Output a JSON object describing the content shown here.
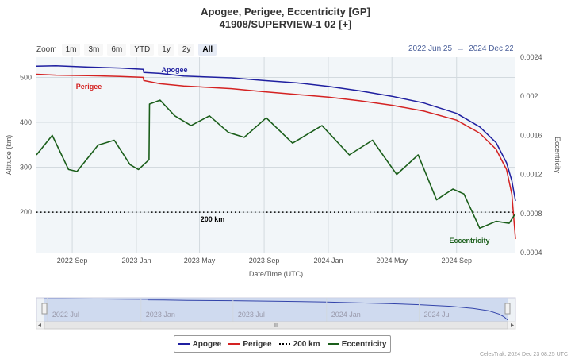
{
  "title_line1": "Apogee, Perigee, Eccentricity [GP]",
  "title_line2": "41908/SUPERVIEW-1 02 [+]",
  "zoom": {
    "label": "Zoom",
    "buttons": [
      "1m",
      "3m",
      "6m",
      "YTD",
      "1y",
      "2y",
      "All"
    ],
    "active": "All"
  },
  "range": {
    "from": "2022 Jun 25",
    "sep": "→",
    "to": "2024 Dec 22"
  },
  "legend": [
    "Apogee",
    "Perigee",
    "200 km",
    "Eccentricity"
  ],
  "credit": "CelesTrak: 2024 Dec 23 08:25 UTC",
  "navigator": {
    "labels": [
      "2022 Jul",
      "2023 Jan",
      "2023 Jul",
      "2024 Jan",
      "2024 Jul"
    ],
    "handle": "III"
  },
  "colors": {
    "apogee": "#1f1fa0",
    "perigee": "#d42222",
    "eccentricity": "#1a5e1a",
    "line200": "#000000"
  },
  "chart_data": {
    "type": "line",
    "xlabel": "Date/Time (UTC)",
    "ylabel": "Altitude (km)",
    "ylabel_right": "Eccentricity",
    "x_ticks": [
      "2022 Sep",
      "2023 Jan",
      "2023 May",
      "2023 Sep",
      "2024 Jan",
      "2024 May",
      "2024 Sep"
    ],
    "y_ticks_left": [
      200,
      300,
      400,
      500
    ],
    "y_ticks_right": [
      0.0004,
      0.0008,
      0.0012,
      0.0016,
      0.002,
      0.0024
    ],
    "ylim_left": [
      110,
      545
    ],
    "ylim_right": [
      0.0004,
      0.0024
    ],
    "grid": true,
    "reference_line": {
      "name": "200 km",
      "value": 200,
      "label": "200 km"
    },
    "annotations": [
      "Apogee",
      "Perigee",
      "Eccentricity"
    ],
    "series": [
      {
        "name": "Apogee",
        "axis": "left",
        "points": [
          [
            "2022-06-25",
            525
          ],
          [
            "2022-08-01",
            526
          ],
          [
            "2022-10-01",
            523
          ],
          [
            "2022-12-01",
            521
          ],
          [
            "2023-01-14",
            518
          ],
          [
            "2023-01-15",
            511
          ],
          [
            "2023-02-15",
            509
          ],
          [
            "2023-04-01",
            503
          ],
          [
            "2023-07-01",
            499
          ],
          [
            "2023-09-01",
            493
          ],
          [
            "2023-11-01",
            488
          ],
          [
            "2024-01-01",
            480
          ],
          [
            "2024-03-01",
            470
          ],
          [
            "2024-05-01",
            458
          ],
          [
            "2024-07-01",
            443
          ],
          [
            "2024-09-01",
            420
          ],
          [
            "2024-10-15",
            390
          ],
          [
            "2024-11-15",
            355
          ],
          [
            "2024-12-05",
            310
          ],
          [
            "2024-12-15",
            270
          ],
          [
            "2024-12-22",
            225
          ]
        ]
      },
      {
        "name": "Perigee",
        "axis": "left",
        "points": [
          [
            "2022-06-25",
            507
          ],
          [
            "2022-08-01",
            505
          ],
          [
            "2022-10-01",
            504
          ],
          [
            "2022-12-01",
            502
          ],
          [
            "2023-01-14",
            500
          ],
          [
            "2023-01-15",
            493
          ],
          [
            "2023-02-15",
            486
          ],
          [
            "2023-04-01",
            481
          ],
          [
            "2023-07-01",
            475
          ],
          [
            "2023-09-01",
            468
          ],
          [
            "2023-11-01",
            462
          ],
          [
            "2024-01-01",
            456
          ],
          [
            "2024-03-01",
            448
          ],
          [
            "2024-05-01",
            438
          ],
          [
            "2024-07-01",
            425
          ],
          [
            "2024-09-01",
            405
          ],
          [
            "2024-10-15",
            376
          ],
          [
            "2024-11-15",
            340
          ],
          [
            "2024-12-05",
            295
          ],
          [
            "2024-12-15",
            240
          ],
          [
            "2024-12-22",
            140
          ]
        ]
      },
      {
        "name": "Eccentricity",
        "axis": "right",
        "points": [
          [
            "2022-06-25",
            0.0014
          ],
          [
            "2022-07-25",
            0.0016
          ],
          [
            "2022-08-25",
            0.00125
          ],
          [
            "2022-09-10",
            0.00123
          ],
          [
            "2022-10-20",
            0.0015
          ],
          [
            "2022-11-20",
            0.00155
          ],
          [
            "2022-12-20",
            0.0013
          ],
          [
            "2023-01-05",
            0.00125
          ],
          [
            "2023-01-25",
            0.00135
          ],
          [
            "2023-01-26",
            0.00192
          ],
          [
            "2023-02-15",
            0.00196
          ],
          [
            "2023-03-15",
            0.0018
          ],
          [
            "2023-04-15",
            0.0017
          ],
          [
            "2023-05-20",
            0.0018
          ],
          [
            "2023-06-25",
            0.00163
          ],
          [
            "2023-07-25",
            0.00158
          ],
          [
            "2023-09-05",
            0.00178
          ],
          [
            "2023-10-25",
            0.00152
          ],
          [
            "2023-12-20",
            0.0017
          ],
          [
            "2024-02-10",
            0.0014
          ],
          [
            "2024-03-25",
            0.00155
          ],
          [
            "2024-05-10",
            0.0012
          ],
          [
            "2024-06-20",
            0.0014
          ],
          [
            "2024-07-25",
            0.00094
          ],
          [
            "2024-08-25",
            0.00105
          ],
          [
            "2024-09-15",
            0.001
          ],
          [
            "2024-10-15",
            0.00065
          ],
          [
            "2024-11-15",
            0.00072
          ],
          [
            "2024-12-10",
            0.0007
          ],
          [
            "2024-12-22",
            0.0008
          ]
        ]
      }
    ]
  }
}
